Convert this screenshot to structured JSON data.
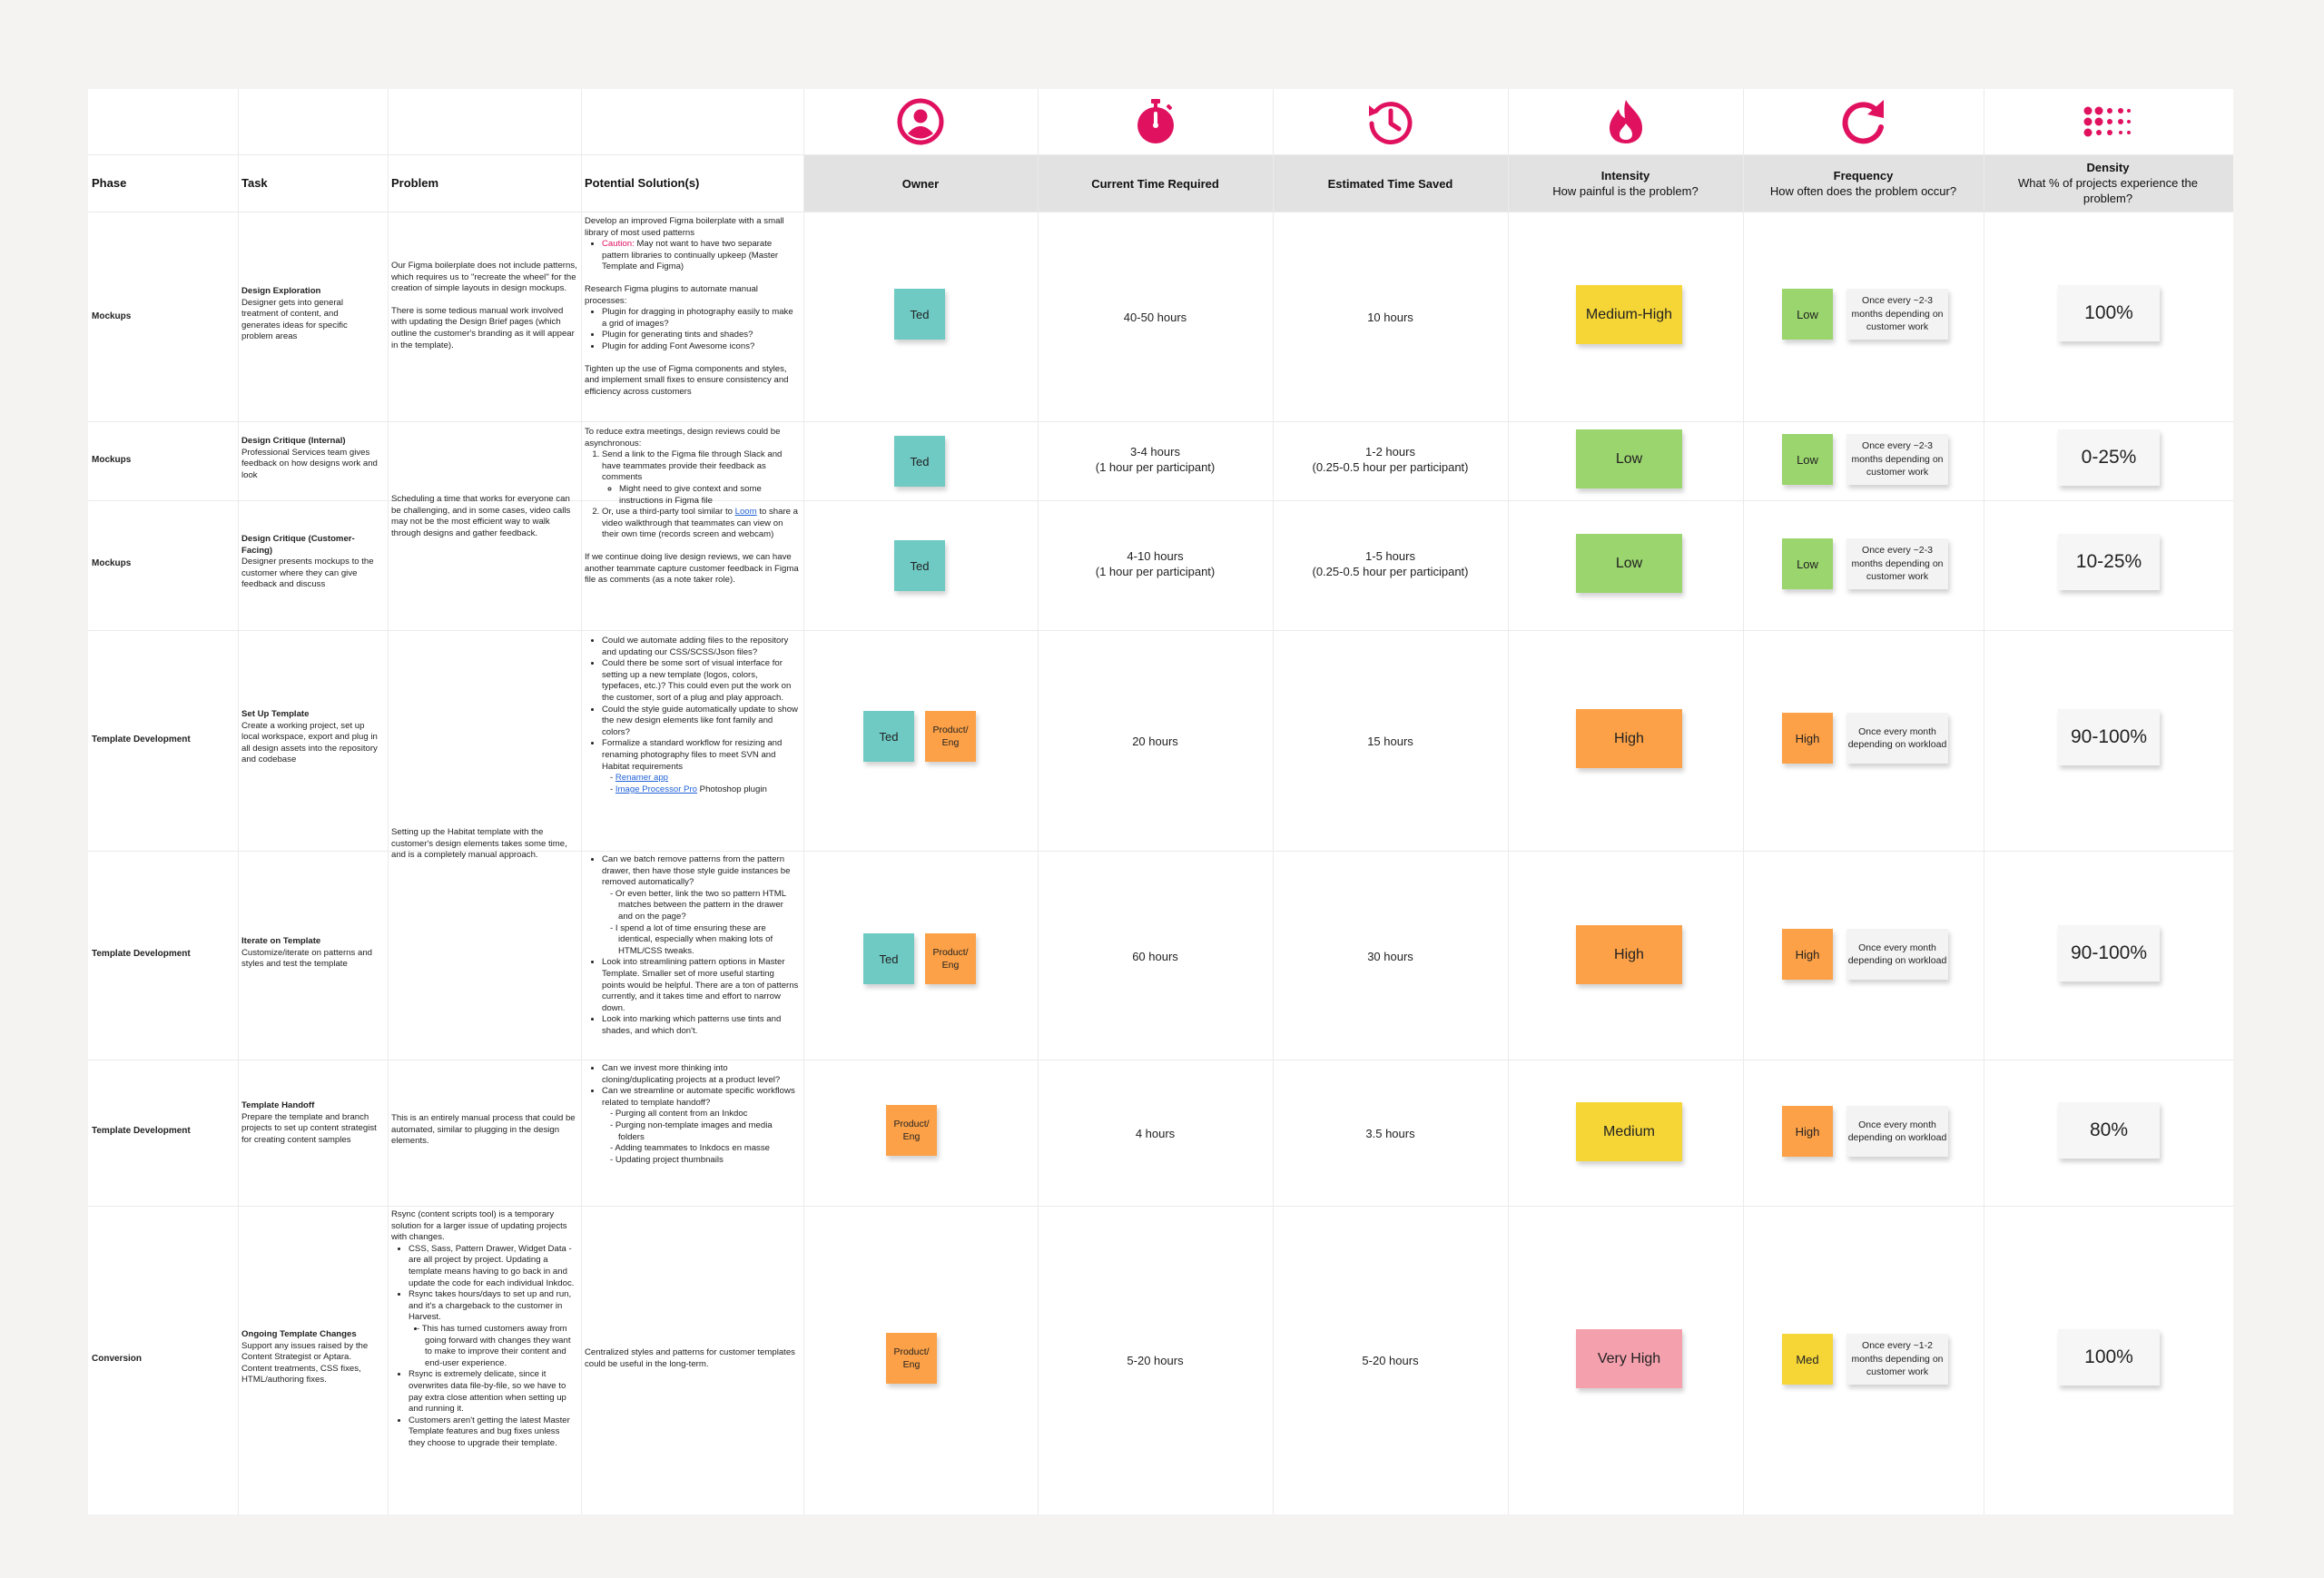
{
  "headers": {
    "phase": "Phase",
    "task": "Task",
    "problem": "Problem",
    "solutions": "Potential Solution(s)",
    "owner": "Owner",
    "current_time": "Current Time Required",
    "time_saved": "Estimated Time Saved",
    "intensity_title": "Intensity",
    "intensity_sub": "How painful is the problem?",
    "frequency_title": "Frequency",
    "frequency_sub": "How often does the problem occur?",
    "density_title": "Density",
    "density_sub": "What % of projects experience the problem?"
  },
  "icons": {
    "owner": "user-circle-icon",
    "current_time": "stopwatch-icon",
    "time_saved": "history-icon",
    "intensity": "flame-icon",
    "frequency": "redo-icon",
    "density": "dots-grid-icon"
  },
  "colors": {
    "accent": "#e0115f",
    "teal": "#6fcac4",
    "orange": "#fca147",
    "yellow": "#f6d637",
    "green": "#9bd56e",
    "pink": "#f4a0ad",
    "header_band": "#e3e2e2"
  },
  "problems": {
    "p1_a": "Our Figma boilerplate does not include patterns, which requires us to \"recreate the wheel\" for the creation of simple layouts in design mockups.",
    "p1_b": "There is some tedious manual work involved with updating the Design Brief pages (which outline the customer's branding as it will appear in the template).",
    "p2": "Scheduling a time that works for everyone can be challenging, and in some cases, video calls may not be the most efficient way to walk through designs and gather feedback.",
    "p3": "Setting up the Habitat template with the customer's design elements takes some time, and is a completely manual approach.",
    "p4": "This is an entirely manual process that could be automated, similar to plugging in the design elements.",
    "p5_intro": "Rsync (content scripts tool) is a temporary solution for a larger issue of updating projects with changes.",
    "p5_b1": "CSS, Sass, Pattern Drawer, Widget Data - are all project by project. Updating a template means having to go back in and update the code for each individual Inkdoc.",
    "p5_b2": "Rsync takes hours/days to set up and run, and it's a chargeback to the customer in Harvest.",
    "p5_b2_sub": "This has turned customers away from going forward with changes they want to make to improve their content and end-user experience.",
    "p5_b3": "Rsync is extremely delicate, since it overwrites data file-by-file, so we have to pay extra close attention when setting up and running it.",
    "p5_b4": "Customers aren't getting the latest Master Template features and bug fixes unless they choose to upgrade their template."
  },
  "solutions": {
    "s1_intro": "Develop an improved Figma boilerplate with a small library of most used patterns",
    "s1_caution_label": "Caution:",
    "s1_caution_text": "May not want to have two separate pattern libraries to continually upkeep (Master Template and Figma)",
    "s1_research": "Research Figma plugins to automate manual processes:",
    "s1_r1": "Plugin for dragging in photography easily to make a grid of images?",
    "s1_r2": "Plugin for generating tints and shades?",
    "s1_r3": "Plugin for adding Font Awesome icons?",
    "s1_tighten": "Tighten up the use of Figma components and styles, and implement small fixes to ensure consistency and efficiency across customers",
    "s2_intro": "To reduce extra meetings, design reviews could be asynchronous:",
    "s2_o1": "Send a link to the Figma file through Slack and have teammates provide their feedback as comments",
    "s2_o1_sub": "Might need to give context and some instructions in Figma file",
    "s2_o2_a": "Or, use a third-party tool similar to",
    "s2_o2_link": "Loom",
    "s2_o2_b": "to share a video walkthrough that teammates can view on their own time (records screen and webcam)",
    "s2_live": "If we continue doing live design reviews, we can have another teammate capture customer feedback in Figma file as comments (as a note taker role).",
    "s3_b1": "Could we automate adding files to the repository and updating our CSS/SCSS/Json files?",
    "s3_b2": "Could there be some sort of visual interface for setting up a new template (logos, colors, typefaces, etc.)? This could even put the work on the customer, sort of a plug and play approach.",
    "s3_b3": "Could the style guide automatically update to show the new design elements like font family and colors?",
    "s3_b4": "Formalize a standard workflow for resizing and renaming photography files to meet SVN and Habitat requirements",
    "s3_link1": "Renamer app",
    "s3_link2": "Image Processor Pro",
    "s3_link2_suffix": "Photoshop plugin",
    "s4_b1": "Can we batch remove patterns from the pattern drawer, then have those style guide instances be removed automatically?",
    "s4_b1_sub1": "Or even better, link the two so pattern HTML matches between the pattern in the drawer and on the page?",
    "s4_b1_sub2": "I spend a lot of time ensuring these are identical, especially when making lots of HTML/CSS tweaks.",
    "s4_b2": "Look into streamlining pattern options in Master Template. Smaller set of more useful starting points would be helpful. There are a ton of patterns currently, and it takes time and effort to narrow down.",
    "s4_b3": "Look into marking which patterns use tints and shades, and which don't.",
    "s5_b1": "Can we invest more thinking into cloning/duplicating projects at a product level?",
    "s5_b2": "Can we streamline or automate specific workflows related to template handoff?",
    "s5_b2_s1": "Purging all content from an Inkdoc",
    "s5_b2_s2": "Purging non-template images and media folders",
    "s5_b2_s3": "Adding teammates to Inkdocs en masse",
    "s5_b2_s4": "Updating project thumbnails",
    "s6": "Centralized styles and patterns for customer templates could be useful in the long-term."
  },
  "rows": [
    {
      "phase": "Mockups",
      "task_title": "Design Exploration",
      "task_desc": "Designer gets into general treatment of content, and generates ideas for specific problem areas",
      "owner1": "Ted",
      "owner2": "",
      "current1": "40-50 hours",
      "current2": "",
      "saved1": "10 hours",
      "saved2": "",
      "intensity": "Medium-High",
      "frequency": "Low",
      "frequency_note": "Once every ~2-3 months depending on customer work",
      "density": "100%"
    },
    {
      "phase": "Mockups",
      "task_title": "Design Critique (Internal)",
      "task_desc": "Professional Services team gives feedback on how designs work and look",
      "owner1": "Ted",
      "owner2": "",
      "current1": "3-4 hours",
      "current2": "(1 hour per participant)",
      "saved1": "1-2 hours",
      "saved2": "(0.25-0.5 hour per participant)",
      "intensity": "Low",
      "frequency": "Low",
      "frequency_note": "Once every ~2-3 months depending on customer work",
      "density": "0-25%"
    },
    {
      "phase": "Mockups",
      "task_title": "Design Critique (Customer-Facing)",
      "task_desc": "Designer presents mockups to the customer where they can give feedback and discuss",
      "owner1": "Ted",
      "owner2": "",
      "current1": "4-10 hours",
      "current2": "(1 hour per participant)",
      "saved1": "1-5 hours",
      "saved2": "(0.25-0.5 hour per participant)",
      "intensity": "Low",
      "frequency": "Low",
      "frequency_note": "Once every ~2-3 months depending on customer work",
      "density": "10-25%"
    },
    {
      "phase": "Template Development",
      "task_title": "Set Up Template",
      "task_desc": "Create a working project, set up local workspace, export and plug in all design assets into the repository and codebase",
      "owner1": "Ted",
      "owner2": "Product/ Eng",
      "current1": "20 hours",
      "current2": "",
      "saved1": "15 hours",
      "saved2": "",
      "intensity": "High",
      "frequency": "High",
      "frequency_note": "Once every month depending on workload",
      "density": "90-100%"
    },
    {
      "phase": "Template Development",
      "task_title": "Iterate on Template",
      "task_desc": "Customize/iterate on patterns and styles and test the template",
      "owner1": "Ted",
      "owner2": "Product/ Eng",
      "current1": "60 hours",
      "current2": "",
      "saved1": "30 hours",
      "saved2": "",
      "intensity": "High",
      "frequency": "High",
      "frequency_note": "Once every month depending on workload",
      "density": "90-100%"
    },
    {
      "phase": "Template Development",
      "task_title": "Template Handoff",
      "task_desc": "Prepare the template and branch projects to set up content strategist for creating content samples",
      "owner1": "Product/ Eng",
      "owner2": "",
      "current1": "4 hours",
      "current2": "",
      "saved1": "3.5 hours",
      "saved2": "",
      "intensity": "Medium",
      "frequency": "High",
      "frequency_note": "Once every month depending on workload",
      "density": "80%"
    },
    {
      "phase": "Conversion",
      "task_title": "Ongoing Template Changes",
      "task_desc": "Support any issues raised by the Content Strategist or Aptara. Content treatments, CSS fixes, HTML/authoring fixes.",
      "owner1": "Product/ Eng",
      "owner2": "",
      "current1": "5-20 hours",
      "current2": "",
      "saved1": "5-20 hours",
      "saved2": "",
      "intensity": "Very High",
      "frequency": "Med",
      "frequency_note": "Once every ~1-2 months depending on customer work",
      "density": "100%"
    }
  ]
}
